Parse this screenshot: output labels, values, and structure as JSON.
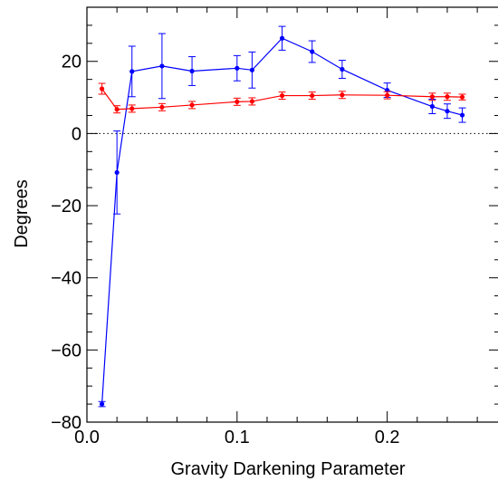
{
  "chart_data": {
    "type": "line",
    "title": "",
    "xlabel": "Gravity Darkening Parameter",
    "ylabel": "Degrees",
    "xlim": [
      0.0,
      0.275
    ],
    "ylim": [
      -80,
      35
    ],
    "x_ticks": [
      0.0,
      0.1,
      0.2
    ],
    "x_tick_labels": [
      "0.0",
      "0.1",
      "0.2"
    ],
    "y_ticks": [
      -80,
      -60,
      -40,
      -20,
      0,
      20
    ],
    "y_tick_labels": [
      "−80",
      "−60",
      "−40",
      "−20",
      "0",
      "20"
    ],
    "grid": false,
    "legend": "none",
    "reference_line": {
      "y": 0,
      "style": "dotted"
    },
    "series": [
      {
        "color": "#0000ff",
        "points": [
          {
            "x": 0.01,
            "y": -75.0,
            "err": 0.7
          },
          {
            "x": 0.02,
            "y": -10.8,
            "err": 11.5
          },
          {
            "x": 0.03,
            "y": 17.2,
            "err": 7.0
          },
          {
            "x": 0.05,
            "y": 18.7,
            "err": 9.0
          },
          {
            "x": 0.07,
            "y": 17.3,
            "err": 4.0
          },
          {
            "x": 0.1,
            "y": 18.1,
            "err": 3.5
          },
          {
            "x": 0.11,
            "y": 17.6,
            "err": 5.0
          },
          {
            "x": 0.13,
            "y": 26.4,
            "err": 3.3
          },
          {
            "x": 0.15,
            "y": 22.7,
            "err": 3.0
          },
          {
            "x": 0.17,
            "y": 17.8,
            "err": 2.5
          },
          {
            "x": 0.2,
            "y": 12.0,
            "err": 2.0
          },
          {
            "x": 0.23,
            "y": 7.5,
            "err": 2.0
          },
          {
            "x": 0.24,
            "y": 6.2,
            "err": 2.0
          },
          {
            "x": 0.25,
            "y": 5.1,
            "err": 2.0
          }
        ]
      },
      {
        "color": "#ff0000",
        "points": [
          {
            "x": 0.01,
            "y": 12.4,
            "err": 1.5
          },
          {
            "x": 0.02,
            "y": 6.7,
            "err": 1.0
          },
          {
            "x": 0.03,
            "y": 6.9,
            "err": 1.0
          },
          {
            "x": 0.05,
            "y": 7.3,
            "err": 1.0
          },
          {
            "x": 0.07,
            "y": 7.9,
            "err": 1.0
          },
          {
            "x": 0.1,
            "y": 8.8,
            "err": 1.0
          },
          {
            "x": 0.11,
            "y": 8.9,
            "err": 1.0
          },
          {
            "x": 0.13,
            "y": 10.5,
            "err": 1.0
          },
          {
            "x": 0.15,
            "y": 10.5,
            "err": 1.0
          },
          {
            "x": 0.17,
            "y": 10.7,
            "err": 1.0
          },
          {
            "x": 0.2,
            "y": 10.6,
            "err": 1.0
          },
          {
            "x": 0.23,
            "y": 10.2,
            "err": 1.0
          },
          {
            "x": 0.24,
            "y": 10.2,
            "err": 1.0
          },
          {
            "x": 0.25,
            "y": 10.1,
            "err": 0.8
          }
        ]
      }
    ]
  }
}
